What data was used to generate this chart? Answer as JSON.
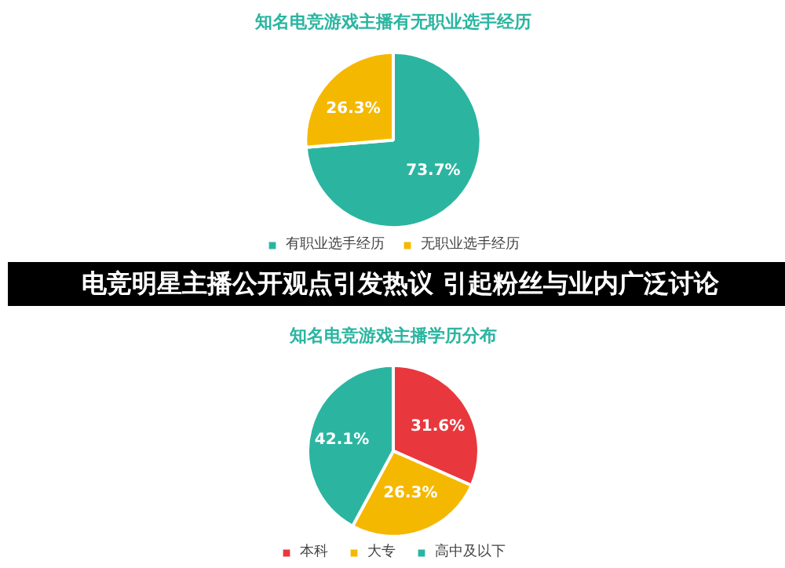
{
  "chart_data": [
    {
      "type": "pie",
      "title": "知名电竞游戏主播有无职业选手经历",
      "categories": [
        "有职业选手经历",
        "无职业选手经历"
      ],
      "values": [
        73.7,
        26.3
      ],
      "value_labels": [
        "73.7%",
        "26.3%"
      ],
      "colors": [
        "#2bb5a0",
        "#f5b800"
      ],
      "legend": "bottom",
      "annotations": [
        "电竞明星主播公开观点引发热议 引起粉丝与业内广泛讨论"
      ]
    },
    {
      "type": "pie",
      "title": "知名电竞游戏主播学历分布",
      "categories": [
        "本科",
        "大专",
        "高中及以下"
      ],
      "values": [
        31.6,
        26.3,
        42.1
      ],
      "value_labels": [
        "31.6%",
        "26.3%",
        "42.1%"
      ],
      "colors": [
        "#e8383d",
        "#f5b800",
        "#2bb5a0"
      ],
      "legend": "bottom"
    }
  ]
}
